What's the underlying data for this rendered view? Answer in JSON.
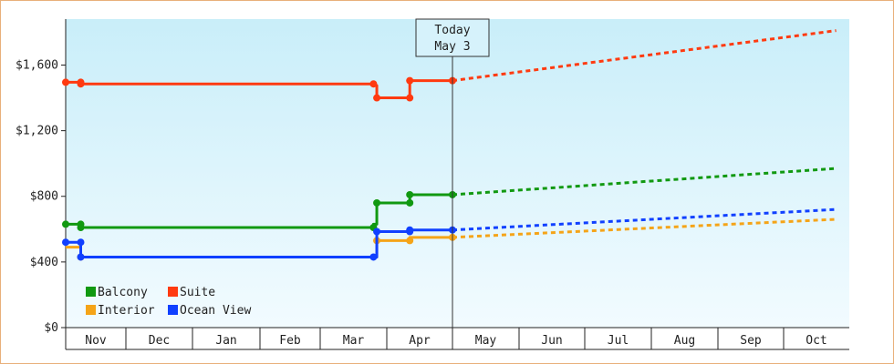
{
  "chart_data": {
    "type": "line",
    "title": "",
    "xlabel": "",
    "ylabel": "",
    "ylim": [
      0,
      1880
    ],
    "y_ticks": [
      0,
      400,
      800,
      1200,
      1600
    ],
    "y_tick_labels": [
      "$0",
      "$400",
      "$800",
      "$1,200",
      "$1,600"
    ],
    "categories": [
      "Nov",
      "Dec",
      "Jan",
      "Feb",
      "Mar",
      "Apr",
      "May",
      "Jun",
      "Jul",
      "Aug",
      "Sep",
      "Oct"
    ],
    "today_marker": {
      "line1": "Today",
      "line2": "May 3",
      "month_index": 6.0
    },
    "legend_position": "bottom-left",
    "grid": false,
    "series": [
      {
        "name": "Balcony",
        "color": "#119911",
        "history": [
          [
            0,
            630
          ],
          [
            0.25,
            630
          ],
          [
            0.25,
            610
          ],
          [
            4.8,
            610
          ],
          [
            4.8,
            630
          ],
          [
            4.85,
            630
          ],
          [
            4.85,
            760
          ],
          [
            5.35,
            760
          ],
          [
            5.35,
            810
          ],
          [
            6.0,
            810
          ]
        ],
        "markers": [
          [
            0,
            630
          ],
          [
            0.25,
            630
          ],
          [
            0.25,
            610
          ],
          [
            4.8,
            610
          ],
          [
            4.85,
            760
          ],
          [
            5.35,
            760
          ],
          [
            5.35,
            810
          ],
          [
            6.0,
            810
          ]
        ],
        "projection": [
          [
            6.0,
            810
          ],
          [
            11.8,
            970
          ]
        ]
      },
      {
        "name": "Suite",
        "color": "#ff3a10",
        "history": [
          [
            0,
            1495
          ],
          [
            0.25,
            1495
          ],
          [
            0.25,
            1485
          ],
          [
            4.8,
            1485
          ],
          [
            4.8,
            1475
          ],
          [
            4.85,
            1475
          ],
          [
            4.85,
            1400
          ],
          [
            5.35,
            1400
          ],
          [
            5.35,
            1505
          ],
          [
            6.0,
            1505
          ]
        ],
        "markers": [
          [
            0,
            1495
          ],
          [
            0.25,
            1495
          ],
          [
            0.25,
            1485
          ],
          [
            4.8,
            1485
          ],
          [
            4.85,
            1400
          ],
          [
            5.35,
            1400
          ],
          [
            5.35,
            1505
          ],
          [
            6.0,
            1505
          ]
        ],
        "projection": [
          [
            6.0,
            1505
          ],
          [
            11.8,
            1810
          ]
        ]
      },
      {
        "name": "Interior",
        "color": "#f5a418",
        "history": [
          [
            0,
            490
          ],
          [
            0.25,
            490
          ],
          [
            0.25,
            430
          ],
          [
            4.8,
            430
          ],
          [
            4.85,
            430
          ],
          [
            4.85,
            530
          ],
          [
            5.35,
            530
          ],
          [
            5.35,
            550
          ],
          [
            6.0,
            550
          ]
        ],
        "markers": [
          [
            0.25,
            430
          ],
          [
            4.85,
            530
          ],
          [
            5.35,
            530
          ],
          [
            6.0,
            550
          ]
        ],
        "projection": [
          [
            6.0,
            550
          ],
          [
            11.8,
            660
          ]
        ]
      },
      {
        "name": "Ocean View",
        "color": "#1040ff",
        "history": [
          [
            0,
            520
          ],
          [
            0.25,
            520
          ],
          [
            0.25,
            430
          ],
          [
            4.8,
            430
          ],
          [
            4.85,
            430
          ],
          [
            4.85,
            585
          ],
          [
            5.35,
            585
          ],
          [
            5.35,
            595
          ],
          [
            6.0,
            595
          ]
        ],
        "markers": [
          [
            0,
            520
          ],
          [
            0.25,
            520
          ],
          [
            0.25,
            430
          ],
          [
            4.8,
            430
          ],
          [
            4.85,
            585
          ],
          [
            5.35,
            585
          ],
          [
            5.35,
            595
          ],
          [
            6.0,
            595
          ]
        ],
        "projection": [
          [
            6.0,
            595
          ],
          [
            11.8,
            720
          ]
        ]
      }
    ]
  }
}
